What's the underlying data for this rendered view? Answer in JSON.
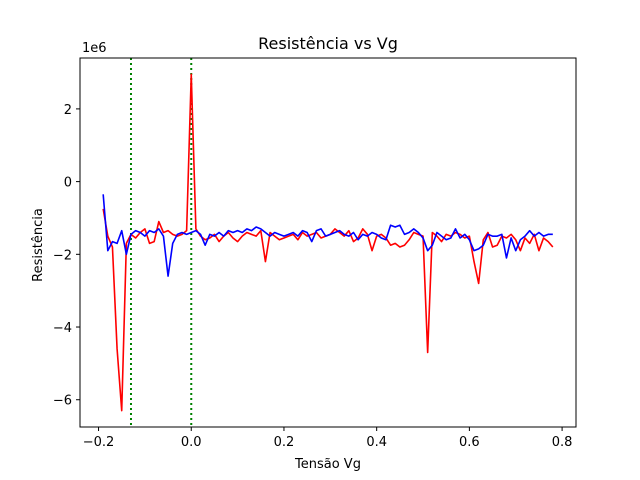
{
  "chart_data": {
    "type": "line",
    "title": "Resistência vs Vg",
    "xlabel": "Tensão Vg",
    "ylabel": "Resistência",
    "y_offset_label": "1e6",
    "y_scale": 1000000,
    "xlim": [
      -0.24,
      0.83
    ],
    "ylim": [
      -6.75,
      3.4
    ],
    "x_ticks": [
      -0.2,
      0.0,
      0.2,
      0.4,
      0.6,
      0.8
    ],
    "x_tick_labels": [
      "−0.2",
      "0.0",
      "0.2",
      "0.4",
      "0.6",
      "0.8"
    ],
    "y_ticks": [
      -6,
      -4,
      -2,
      0,
      2
    ],
    "y_tick_labels": [
      "−6",
      "−4",
      "−2",
      "0",
      "2"
    ],
    "grid": false,
    "vlines": [
      {
        "x": -0.13,
        "color": "#008000",
        "style": "dotted"
      },
      {
        "x": 0.0,
        "color": "#008000",
        "style": "dotted"
      }
    ],
    "series": [
      {
        "color": "#ff0000",
        "x": [
          -0.19,
          -0.18,
          -0.17,
          -0.16,
          -0.15,
          -0.14,
          -0.13,
          -0.12,
          -0.11,
          -0.1,
          -0.09,
          -0.08,
          -0.07,
          -0.06,
          -0.05,
          -0.04,
          -0.03,
          -0.02,
          -0.01,
          0.0,
          0.01,
          0.02,
          0.03,
          0.04,
          0.05,
          0.06,
          0.07,
          0.08,
          0.09,
          0.1,
          0.11,
          0.12,
          0.13,
          0.14,
          0.15,
          0.16,
          0.17,
          0.18,
          0.19,
          0.2,
          0.21,
          0.22,
          0.23,
          0.24,
          0.25,
          0.26,
          0.27,
          0.28,
          0.29,
          0.3,
          0.31,
          0.32,
          0.33,
          0.34,
          0.35,
          0.36,
          0.37,
          0.38,
          0.39,
          0.4,
          0.41,
          0.42,
          0.43,
          0.44,
          0.45,
          0.46,
          0.47,
          0.48,
          0.49,
          0.5,
          0.51,
          0.52,
          0.53,
          0.54,
          0.55,
          0.56,
          0.57,
          0.58,
          0.59,
          0.6,
          0.61,
          0.62,
          0.63,
          0.64,
          0.65,
          0.66,
          0.67,
          0.68,
          0.69,
          0.7,
          0.71,
          0.72,
          0.73,
          0.74,
          0.75,
          0.76,
          0.77,
          0.78
        ],
        "y": [
          -0.75,
          -1.5,
          -1.8,
          -4.6,
          -6.3,
          -1.7,
          -1.45,
          -1.55,
          -1.4,
          -1.3,
          -1.7,
          -1.65,
          -1.1,
          -1.4,
          -1.35,
          -1.45,
          -1.5,
          -1.45,
          -1.35,
          2.95,
          -1.3,
          -1.5,
          -1.6,
          -1.55,
          -1.45,
          -1.65,
          -1.5,
          -1.4,
          -1.55,
          -1.65,
          -1.5,
          -1.4,
          -1.45,
          -1.5,
          -1.35,
          -2.2,
          -1.4,
          -1.5,
          -1.6,
          -1.55,
          -1.5,
          -1.45,
          -1.6,
          -1.4,
          -1.5,
          -1.45,
          -1.4,
          -1.55,
          -1.5,
          -1.45,
          -1.3,
          -1.4,
          -1.5,
          -1.35,
          -1.65,
          -1.55,
          -1.3,
          -1.45,
          -1.9,
          -1.5,
          -1.45,
          -1.55,
          -1.75,
          -1.7,
          -1.8,
          -1.75,
          -1.6,
          -1.4,
          -1.45,
          -1.5,
          -4.7,
          -1.4,
          -1.5,
          -1.65,
          -1.45,
          -1.5,
          -1.4,
          -1.45,
          -1.55,
          -1.5,
          -2.2,
          -2.8,
          -1.6,
          -1.4,
          -1.8,
          -1.75,
          -1.5,
          -1.55,
          -1.45,
          -1.6,
          -1.9,
          -1.55,
          -1.7,
          -1.45,
          -1.9,
          -1.55,
          -1.65,
          -1.8
        ]
      },
      {
        "color": "#0000ff",
        "x": [
          -0.19,
          -0.18,
          -0.17,
          -0.16,
          -0.15,
          -0.14,
          -0.13,
          -0.12,
          -0.11,
          -0.1,
          -0.09,
          -0.08,
          -0.07,
          -0.06,
          -0.05,
          -0.04,
          -0.03,
          -0.02,
          -0.01,
          0.0,
          0.01,
          0.02,
          0.03,
          0.04,
          0.05,
          0.06,
          0.07,
          0.08,
          0.09,
          0.1,
          0.11,
          0.12,
          0.13,
          0.14,
          0.15,
          0.16,
          0.17,
          0.18,
          0.19,
          0.2,
          0.21,
          0.22,
          0.23,
          0.24,
          0.25,
          0.26,
          0.27,
          0.28,
          0.29,
          0.3,
          0.31,
          0.32,
          0.33,
          0.34,
          0.35,
          0.36,
          0.37,
          0.38,
          0.39,
          0.4,
          0.41,
          0.42,
          0.43,
          0.44,
          0.45,
          0.46,
          0.47,
          0.48,
          0.49,
          0.5,
          0.51,
          0.52,
          0.53,
          0.54,
          0.55,
          0.56,
          0.57,
          0.58,
          0.59,
          0.6,
          0.61,
          0.62,
          0.63,
          0.64,
          0.65,
          0.66,
          0.67,
          0.68,
          0.69,
          0.7,
          0.71,
          0.72,
          0.73,
          0.74,
          0.75,
          0.76,
          0.77,
          0.78
        ],
        "y": [
          -0.35,
          -1.9,
          -1.65,
          -1.7,
          -1.35,
          -2.0,
          -1.45,
          -1.35,
          -1.4,
          -1.5,
          -1.35,
          -1.4,
          -1.3,
          -1.5,
          -2.6,
          -1.7,
          -1.45,
          -1.4,
          -1.45,
          -1.4,
          -1.35,
          -1.45,
          -1.75,
          -1.45,
          -1.5,
          -1.4,
          -1.5,
          -1.35,
          -1.4,
          -1.35,
          -1.4,
          -1.3,
          -1.35,
          -1.25,
          -1.3,
          -1.4,
          -1.5,
          -1.4,
          -1.45,
          -1.5,
          -1.45,
          -1.4,
          -1.5,
          -1.35,
          -1.4,
          -1.65,
          -1.35,
          -1.3,
          -1.5,
          -1.45,
          -1.4,
          -1.35,
          -1.45,
          -1.5,
          -1.4,
          -1.6,
          -1.45,
          -1.5,
          -1.4,
          -1.45,
          -1.55,
          -1.6,
          -1.2,
          -1.25,
          -1.2,
          -1.45,
          -1.4,
          -1.3,
          -1.4,
          -1.55,
          -1.9,
          -1.75,
          -1.4,
          -1.5,
          -1.6,
          -1.55,
          -1.3,
          -1.55,
          -1.45,
          -1.6,
          -1.9,
          -1.85,
          -1.75,
          -1.45,
          -1.5,
          -1.5,
          -1.45,
          -2.1,
          -1.55,
          -1.9,
          -1.6,
          -1.5,
          -1.35,
          -1.5,
          -1.4,
          -1.5,
          -1.45,
          -1.45
        ]
      }
    ]
  }
}
